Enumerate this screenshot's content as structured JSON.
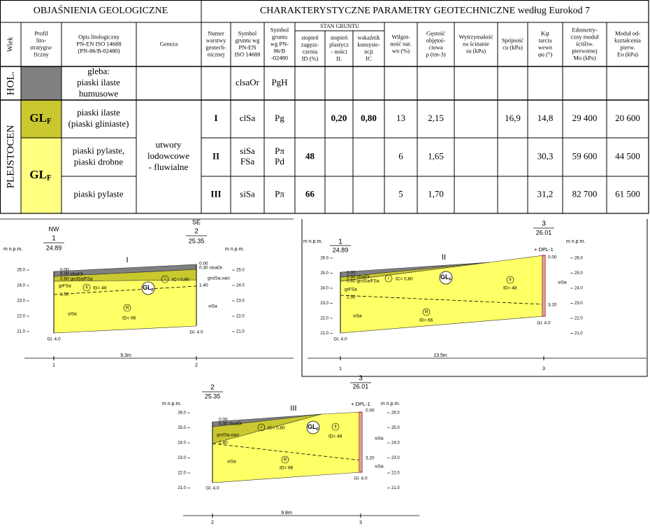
{
  "table": {
    "left_title": "OBJAŚNIENIA  GEOLOGICZNE",
    "right_title": "CHARAKTERYSTYCZNE PARAMETRY  GEOTECHNICZNE według Eurokod 7",
    "group_header": "STAN GRUNTU",
    "columns": [
      [
        "Wiek"
      ],
      [
        "Profil",
        "lito-",
        "stratygra-",
        "ficzny"
      ],
      [
        "Opis litologiczny",
        "PN-EN ISO 14688",
        "(PN-86/B-02480)"
      ],
      [
        "Geneza"
      ],
      [
        "Numer",
        "warstwy",
        "geotech-",
        "nicznej"
      ],
      [
        "Symbol",
        "gruntu  wg",
        "PN-EN",
        "ISO 14688"
      ],
      [
        "Symbol",
        "gruntu",
        "wg PN-",
        "86/B",
        "-02480"
      ],
      [
        "stopień",
        "zagęsz-",
        "czenia",
        "ID (%)"
      ],
      [
        "stopień",
        "plastycz",
        "- ności",
        "IL"
      ],
      [
        "wskaźnik",
        "konsyste-",
        "ncji",
        "IC"
      ],
      [
        "Wilgot-",
        "ność nat.",
        "wn (%)"
      ],
      [
        "Gęstość",
        "objętoś-",
        "ciowa",
        "ρ (tm-3)"
      ],
      [
        "Wytrzymałość",
        "na ścinanie",
        "su (kPa)"
      ],
      [
        "Spójność",
        "cu (kPa)"
      ],
      [
        "Kąt",
        "tarcia",
        "wewn",
        "φu (°)"
      ],
      [
        "Edometry-",
        "czny moduł",
        "ściśliw.",
        "pierwotnej",
        "Mo (kPa)"
      ],
      [
        "Moduł od-",
        "kształcenia",
        "pierw.",
        "Eo (kPa)"
      ]
    ],
    "ages": [
      "HOL.",
      "PLEJSTOCEN"
    ],
    "profile": {
      "main": "GL",
      "sub": "F"
    },
    "genesis": [
      "utwory",
      "lodowcowe",
      "- fluwialne"
    ],
    "rows": [
      {
        "description": [
          "gleba:",
          "piaski ilaste",
          "humusowe"
        ],
        "cells": {
          "5": "clsaOr",
          "6": "PgH"
        }
      },
      {
        "description": [
          "piaski ilaste",
          "(piaski gliniaste)"
        ],
        "cells": {
          "4": "I",
          "5": "clSa",
          "6": "Pg",
          "8": "0,20",
          "9": "0,80",
          "10": "13",
          "11": "2,15",
          "13": "16,9",
          "14": "14,8",
          "15": "29 400",
          "16": "20 600"
        }
      },
      {
        "description": [
          "piaski pylaste,",
          "piaski drobne"
        ],
        "cells": {
          "4": "II",
          "5": [
            "siSa",
            "FSa"
          ],
          "6": [
            "Pπ",
            "Pd"
          ],
          "7": "48",
          "10": "6",
          "11": "1,65",
          "14": "30,3",
          "15": "59 600",
          "16": "44 500"
        }
      },
      {
        "description": [
          "piaski pylaste"
        ],
        "cells": {
          "4": "III",
          "5": "siSa",
          "6": "Pπ",
          "7": "66",
          "10": "5",
          "11": "1,70",
          "14": "31,2",
          "15": "82 700",
          "16": "61 500"
        }
      }
    ]
  },
  "sections": [
    {
      "title": "I",
      "axis_label": "m n.p.m.",
      "left_ticks": [
        "25.0",
        "24.0",
        "23.0",
        "22.0",
        "21.0"
      ],
      "right_ticks": [
        "25.0",
        "24.0",
        "23.0",
        "22.0",
        "21.0"
      ],
      "left_borehole": {
        "direction": "NW",
        "number": "1",
        "elevation": "24.89",
        "depth": "Gl. 4.0"
      },
      "right_borehole": {
        "direction": "SE",
        "number": "2",
        "elevation": "25.35",
        "depth": "Gl. 4.0"
      },
      "labels": [
        "0.00",
        "0.30 clsaOr",
        "0.60 grclSa/FSa",
        "grFSa",
        "1.50",
        "0.00",
        "0.30 clsaOr",
        "grclSa,saci",
        "1.40",
        "I",
        "IC= 0,80",
        "II",
        "ID= 48",
        "III",
        "ID= 66",
        "siSa",
        "siSa"
      ],
      "distance": "9.3m",
      "end_numbers": [
        "1",
        "2"
      ]
    },
    {
      "title": "II",
      "axis_label": "m n.p.m.",
      "left_ticks": [
        "26.0",
        "25.0",
        "24.0",
        "23.0",
        "22.0",
        "21.0"
      ],
      "right_ticks": [
        "26.0",
        "25.0",
        "24.0",
        "23.0",
        "22.0",
        "21.0"
      ],
      "left_borehole": {
        "number": "1",
        "elevation": "24.89",
        "depth": "Gl. 4.0"
      },
      "right_borehole": {
        "number": "3",
        "elevation": "26.01",
        "probe": "+ DPL-1",
        "depth": "Gl. 4.0"
      },
      "labels": [
        "0.00",
        "0.30 clsaOr",
        "0.60 grclSa/FSa",
        "grFSa",
        "1.50",
        "0.00",
        "3.20",
        "I",
        "IC= 0,80",
        "II",
        "ID= 48",
        "III",
        "ID= 66",
        "siSa",
        "siSa"
      ],
      "distance": "13.5m",
      "end_numbers": [
        "1",
        "3"
      ]
    },
    {
      "title": "III",
      "axis_label": "m n.p.m.",
      "left_ticks": [
        "26.0",
        "25.0",
        "24.0",
        "23.0",
        "22.0",
        "21.0"
      ],
      "right_ticks": [
        "26.0",
        "25.0",
        "24.0",
        "23.0",
        "22.0",
        "21.0"
      ],
      "left_borehole": {
        "number": "2",
        "elevation": "25.35",
        "depth": "Gl. 4.0"
      },
      "right_borehole": {
        "number": "3",
        "elevation": "26.01",
        "probe": "+ DPL-1",
        "depth": "Gl. 4.0"
      },
      "labels": [
        "0.00",
        "0.30 clsaOr",
        "grclSa,saci",
        "1.40",
        "0.00",
        "3.20",
        "I",
        "IC= 0,80",
        "II",
        "ID= 48",
        "III",
        "ID= 66",
        "siSa",
        "siSa",
        "siSa"
      ],
      "distance": "9.8m",
      "end_numbers": [
        "2",
        "3"
      ]
    }
  ]
}
